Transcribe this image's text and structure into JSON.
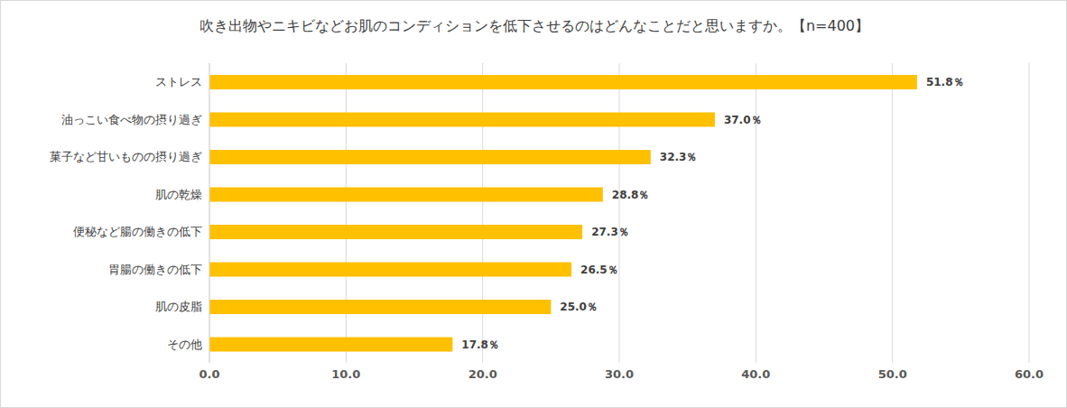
{
  "chart_data": {
    "type": "bar",
    "title": "吹き出物やニキビなどお肌のコンディションを低下させるのはどんなことだと思いますか。【n=400】",
    "orientation": "horizontal",
    "categories": [
      "ストレス",
      "油っこい食べ物の摂り過ぎ",
      "菓子など甘いものの摂り過ぎ",
      "肌の乾燥",
      "便秘など腸の働きの低下",
      "胃腸の働きの低下",
      "肌の皮脂",
      "その他"
    ],
    "values": [
      51.8,
      37.0,
      32.3,
      28.8,
      27.3,
      26.5,
      25.0,
      17.8
    ],
    "value_labels": [
      "51.8％",
      "37.0％",
      "32.3％",
      "28.8％",
      "27.3％",
      "26.5％",
      "25.0％",
      "17.8％"
    ],
    "color": "#ffc000",
    "xlim": [
      0,
      60
    ],
    "xticks": [
      {
        "value": 0,
        "label": "0.0"
      },
      {
        "value": 10,
        "label": "10.0"
      },
      {
        "value": 20,
        "label": "20.0"
      },
      {
        "value": 30,
        "label": "30.0"
      },
      {
        "value": 40,
        "label": "40.0"
      },
      {
        "value": 50,
        "label": "50.0"
      },
      {
        "value": 60,
        "label": "60.0"
      }
    ],
    "grid": true,
    "data_labels": true
  }
}
